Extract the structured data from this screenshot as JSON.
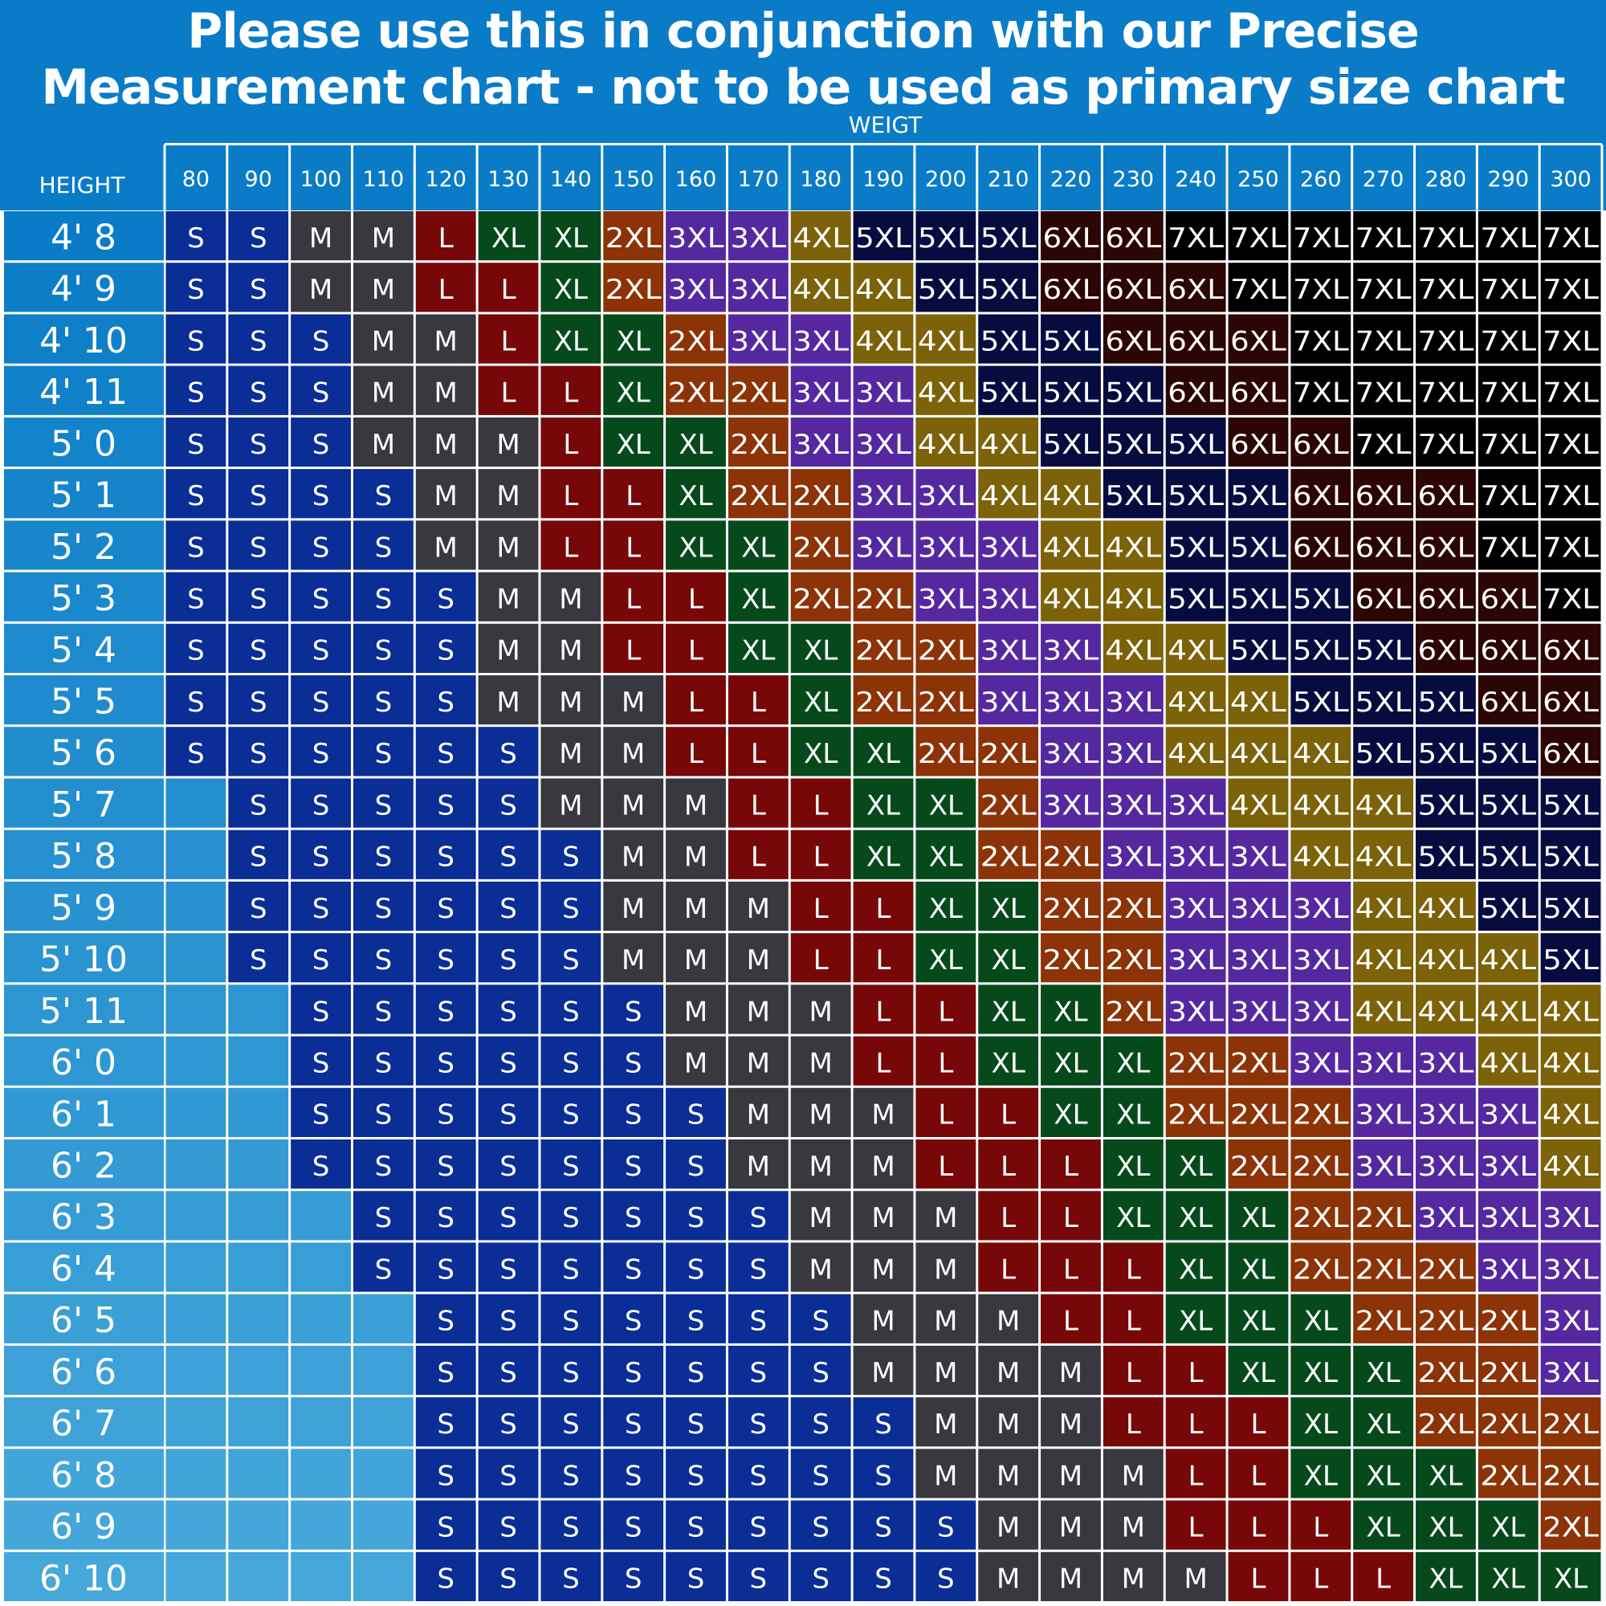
{
  "title": "Please use this in conjunction with our Precise Measurement chart - not to be used as primary size chart",
  "colors": {
    "header_band": "#0a7cc7",
    "grid_line": "#ffffff",
    "S": "#0a2e96",
    "M": "#38383e",
    "L": "#780808",
    "XL": "#064a1c",
    "2XL": "#8c3308",
    "3XL": "#5528a0",
    "4XL": "#7c6208",
    "5XL": "#060c40",
    "6XL": "#2c0505",
    "7XL": "#000000"
  },
  "chart_data": {
    "type": "heatmap",
    "title": "Please use this in conjunction with our Precise Measurement chart - not to be used as primary size chart",
    "xlabel": "WEIGT",
    "ylabel": "HEIGHT",
    "x": [
      "80",
      "90",
      "100",
      "110",
      "120",
      "130",
      "140",
      "150",
      "160",
      "170",
      "180",
      "190",
      "200",
      "210",
      "220",
      "230",
      "240",
      "250",
      "260",
      "270",
      "280",
      "290",
      "300"
    ],
    "y": [
      "4' 8",
      "4' 9",
      "4' 10",
      "4' 11",
      "5' 0",
      "5' 1",
      "5' 2",
      "5' 3",
      "5' 4",
      "5' 5",
      "5' 6",
      "5' 7",
      "5' 8",
      "5' 9",
      "5' 10",
      "5' 11",
      "6' 0",
      "6' 1",
      "6' 2",
      "6' 3",
      "6' 4",
      "6' 5",
      "6' 6",
      "6' 7",
      "6' 8",
      "6' 9",
      "6' 10"
    ],
    "values": [
      [
        "S",
        "S",
        "M",
        "M",
        "L",
        "XL",
        "XL",
        "2XL",
        "3XL",
        "3XL",
        "4XL",
        "5XL",
        "5XL",
        "5XL",
        "6XL",
        "6XL",
        "7XL",
        "7XL",
        "7XL",
        "7XL",
        "7XL",
        "7XL",
        "7XL"
      ],
      [
        "S",
        "S",
        "M",
        "M",
        "L",
        "L",
        "XL",
        "2XL",
        "3XL",
        "3XL",
        "4XL",
        "4XL",
        "5XL",
        "5XL",
        "6XL",
        "6XL",
        "6XL",
        "7XL",
        "7XL",
        "7XL",
        "7XL",
        "7XL",
        "7XL"
      ],
      [
        "S",
        "S",
        "S",
        "M",
        "M",
        "L",
        "XL",
        "XL",
        "2XL",
        "3XL",
        "3XL",
        "4XL",
        "4XL",
        "5XL",
        "5XL",
        "6XL",
        "6XL",
        "6XL",
        "7XL",
        "7XL",
        "7XL",
        "7XL",
        "7XL"
      ],
      [
        "S",
        "S",
        "S",
        "M",
        "M",
        "L",
        "L",
        "XL",
        "2XL",
        "2XL",
        "3XL",
        "3XL",
        "4XL",
        "5XL",
        "5XL",
        "5XL",
        "6XL",
        "6XL",
        "7XL",
        "7XL",
        "7XL",
        "7XL",
        "7XL"
      ],
      [
        "S",
        "S",
        "S",
        "M",
        "M",
        "M",
        "L",
        "XL",
        "XL",
        "2XL",
        "3XL",
        "3XL",
        "4XL",
        "4XL",
        "5XL",
        "5XL",
        "5XL",
        "6XL",
        "6XL",
        "7XL",
        "7XL",
        "7XL",
        "7XL"
      ],
      [
        "S",
        "S",
        "S",
        "S",
        "M",
        "M",
        "L",
        "L",
        "XL",
        "2XL",
        "2XL",
        "3XL",
        "3XL",
        "4XL",
        "4XL",
        "5XL",
        "5XL",
        "5XL",
        "6XL",
        "6XL",
        "6XL",
        "7XL",
        "7XL"
      ],
      [
        "S",
        "S",
        "S",
        "S",
        "M",
        "M",
        "L",
        "L",
        "XL",
        "XL",
        "2XL",
        "3XL",
        "3XL",
        "3XL",
        "4XL",
        "4XL",
        "5XL",
        "5XL",
        "6XL",
        "6XL",
        "6XL",
        "7XL",
        "7XL"
      ],
      [
        "S",
        "S",
        "S",
        "S",
        "S",
        "M",
        "M",
        "L",
        "L",
        "XL",
        "2XL",
        "2XL",
        "3XL",
        "3XL",
        "4XL",
        "4XL",
        "5XL",
        "5XL",
        "5XL",
        "6XL",
        "6XL",
        "6XL",
        "7XL"
      ],
      [
        "S",
        "S",
        "S",
        "S",
        "S",
        "M",
        "M",
        "L",
        "L",
        "XL",
        "XL",
        "2XL",
        "2XL",
        "3XL",
        "3XL",
        "4XL",
        "4XL",
        "5XL",
        "5XL",
        "5XL",
        "6XL",
        "6XL",
        "6XL"
      ],
      [
        "S",
        "S",
        "S",
        "S",
        "S",
        "M",
        "M",
        "M",
        "L",
        "L",
        "XL",
        "2XL",
        "2XL",
        "3XL",
        "3XL",
        "3XL",
        "4XL",
        "4XL",
        "5XL",
        "5XL",
        "5XL",
        "6XL",
        "6XL"
      ],
      [
        "S",
        "S",
        "S",
        "S",
        "S",
        "S",
        "M",
        "M",
        "L",
        "L",
        "XL",
        "XL",
        "2XL",
        "2XL",
        "3XL",
        "3XL",
        "4XL",
        "4XL",
        "4XL",
        "5XL",
        "5XL",
        "5XL",
        "6XL"
      ],
      [
        "",
        "S",
        "S",
        "S",
        "S",
        "S",
        "M",
        "M",
        "M",
        "L",
        "L",
        "XL",
        "XL",
        "2XL",
        "3XL",
        "3XL",
        "3XL",
        "4XL",
        "4XL",
        "4XL",
        "5XL",
        "5XL",
        "5XL"
      ],
      [
        "",
        "S",
        "S",
        "S",
        "S",
        "S",
        "S",
        "M",
        "M",
        "L",
        "L",
        "XL",
        "XL",
        "2XL",
        "2XL",
        "3XL",
        "3XL",
        "3XL",
        "4XL",
        "4XL",
        "5XL",
        "5XL",
        "5XL"
      ],
      [
        "",
        "S",
        "S",
        "S",
        "S",
        "S",
        "S",
        "M",
        "M",
        "M",
        "L",
        "L",
        "XL",
        "XL",
        "2XL",
        "2XL",
        "3XL",
        "3XL",
        "3XL",
        "4XL",
        "4XL",
        "5XL",
        "5XL"
      ],
      [
        "",
        "S",
        "S",
        "S",
        "S",
        "S",
        "S",
        "M",
        "M",
        "M",
        "L",
        "L",
        "XL",
        "XL",
        "2XL",
        "2XL",
        "3XL",
        "3XL",
        "3XL",
        "4XL",
        "4XL",
        "4XL",
        "5XL"
      ],
      [
        "",
        "",
        "S",
        "S",
        "S",
        "S",
        "S",
        "S",
        "M",
        "M",
        "M",
        "L",
        "L",
        "XL",
        "XL",
        "2XL",
        "3XL",
        "3XL",
        "3XL",
        "4XL",
        "4XL",
        "4XL",
        "4XL"
      ],
      [
        "",
        "",
        "S",
        "S",
        "S",
        "S",
        "S",
        "S",
        "M",
        "M",
        "M",
        "L",
        "L",
        "XL",
        "XL",
        "XL",
        "2XL",
        "2XL",
        "3XL",
        "3XL",
        "3XL",
        "4XL",
        "4XL"
      ],
      [
        "",
        "",
        "S",
        "S",
        "S",
        "S",
        "S",
        "S",
        "S",
        "M",
        "M",
        "M",
        "L",
        "L",
        "XL",
        "XL",
        "2XL",
        "2XL",
        "2XL",
        "3XL",
        "3XL",
        "3XL",
        "4XL"
      ],
      [
        "",
        "",
        "S",
        "S",
        "S",
        "S",
        "S",
        "S",
        "S",
        "M",
        "M",
        "M",
        "L",
        "L",
        "L",
        "XL",
        "XL",
        "2XL",
        "2XL",
        "3XL",
        "3XL",
        "3XL",
        "4XL"
      ],
      [
        "",
        "",
        "",
        "S",
        "S",
        "S",
        "S",
        "S",
        "S",
        "S",
        "M",
        "M",
        "M",
        "L",
        "L",
        "XL",
        "XL",
        "XL",
        "2XL",
        "2XL",
        "3XL",
        "3XL",
        "3XL"
      ],
      [
        "",
        "",
        "",
        "S",
        "S",
        "S",
        "S",
        "S",
        "S",
        "S",
        "M",
        "M",
        "M",
        "L",
        "L",
        "L",
        "XL",
        "XL",
        "2XL",
        "2XL",
        "2XL",
        "3XL",
        "3XL"
      ],
      [
        "",
        "",
        "",
        "",
        "S",
        "S",
        "S",
        "S",
        "S",
        "S",
        "S",
        "M",
        "M",
        "M",
        "L",
        "L",
        "XL",
        "XL",
        "XL",
        "2XL",
        "2XL",
        "2XL",
        "3XL"
      ],
      [
        "",
        "",
        "",
        "",
        "S",
        "S",
        "S",
        "S",
        "S",
        "S",
        "S",
        "M",
        "M",
        "M",
        "M",
        "L",
        "L",
        "XL",
        "XL",
        "XL",
        "2XL",
        "2XL",
        "3XL"
      ],
      [
        "",
        "",
        "",
        "",
        "S",
        "S",
        "S",
        "S",
        "S",
        "S",
        "S",
        "S",
        "M",
        "M",
        "M",
        "L",
        "L",
        "L",
        "XL",
        "XL",
        "2XL",
        "2XL",
        "2XL"
      ],
      [
        "",
        "",
        "",
        "",
        "S",
        "S",
        "S",
        "S",
        "S",
        "S",
        "S",
        "S",
        "M",
        "M",
        "M",
        "M",
        "L",
        "L",
        "XL",
        "XL",
        "XL",
        "2XL",
        "2XL"
      ],
      [
        "",
        "",
        "",
        "",
        "S",
        "S",
        "S",
        "S",
        "S",
        "S",
        "S",
        "S",
        "S",
        "M",
        "M",
        "M",
        "L",
        "L",
        "L",
        "XL",
        "XL",
        "XL",
        "2XL"
      ],
      [
        "",
        "",
        "",
        "",
        "S",
        "S",
        "S",
        "S",
        "S",
        "S",
        "S",
        "S",
        "S",
        "M",
        "M",
        "M",
        "M",
        "L",
        "L",
        "L",
        "XL",
        "XL",
        "XL"
      ]
    ]
  }
}
